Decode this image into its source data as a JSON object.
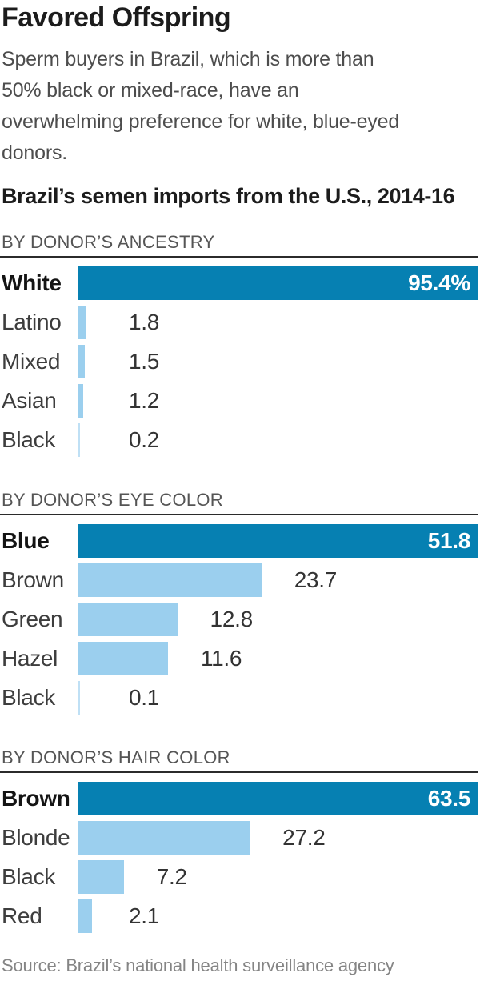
{
  "title": "Favored Offspring",
  "subtitle": "Sperm buyers in Brazil, which is more than 50% black or mixed-race, have an overwhelming preference for white, blue-eyed donors.",
  "chart_title": "Brazil’s semen imports from the U.S., 2014-16",
  "source": "Source: Brazil’s national health surveillance agency",
  "colors": {
    "bar_dark": "#0680b2",
    "bar_light": "#9bcfee",
    "bar_hairline": "#bfe0f5",
    "rule": "#2b2b2b",
    "value_text": "#333333",
    "value_text_inverse": "#ffffff"
  },
  "chart_data": [
    {
      "type": "bar",
      "orientation": "horizontal",
      "title": "BY DONOR’S ANCESTRY",
      "categories": [
        "White",
        "Latino",
        "Mixed",
        "Asian",
        "Black"
      ],
      "values": [
        95.4,
        1.8,
        1.5,
        1.2,
        0.2
      ],
      "value_labels": [
        "95.4%",
        "1.8",
        "1.5",
        "1.2",
        "0.2"
      ],
      "unit": "percent",
      "highlight_index": 0,
      "xlim": [
        0,
        95.4
      ],
      "grid": false,
      "legend": false
    },
    {
      "type": "bar",
      "orientation": "horizontal",
      "title": "BY DONOR’S EYE COLOR",
      "categories": [
        "Blue",
        "Brown",
        "Green",
        "Hazel",
        "Black"
      ],
      "values": [
        51.8,
        23.7,
        12.8,
        11.6,
        0.1
      ],
      "value_labels": [
        "51.8",
        "23.7",
        "12.8",
        "11.6",
        "0.1"
      ],
      "unit": "percent",
      "highlight_index": 0,
      "xlim": [
        0,
        51.8
      ],
      "grid": false,
      "legend": false
    },
    {
      "type": "bar",
      "orientation": "horizontal",
      "title": "BY DONOR’S HAIR COLOR",
      "categories": [
        "Brown",
        "Blonde",
        "Black",
        "Red"
      ],
      "values": [
        63.5,
        27.2,
        7.2,
        2.1
      ],
      "value_labels": [
        "63.5",
        "27.2",
        "7.2",
        "2.1"
      ],
      "unit": "percent",
      "highlight_index": 0,
      "xlim": [
        0,
        63.5
      ],
      "grid": false,
      "legend": false
    }
  ]
}
